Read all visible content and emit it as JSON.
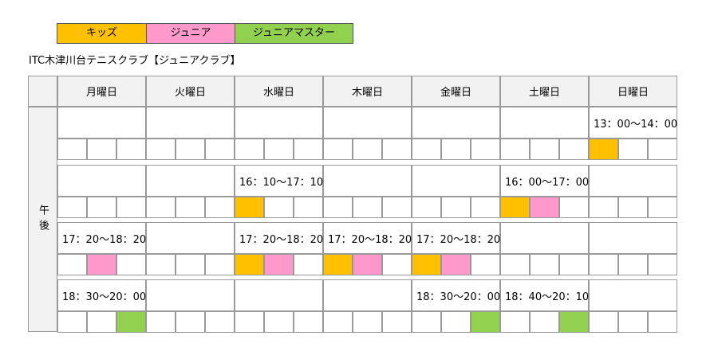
{
  "colors": {
    "kids": "#FFC000",
    "junior": "#FF99CC",
    "master": "#92D050",
    "header_bg": "#F2F2F2",
    "border": "#999999"
  },
  "legend": [
    {
      "label": "キッズ",
      "color": "#FFC000",
      "width": 111
    },
    {
      "label": "ジュニア",
      "color": "#FF99CC",
      "width": 111
    },
    {
      "label": "ジュニアマスター",
      "color": "#92D050",
      "width": 148
    }
  ],
  "title": "ITC木津川台テニスクラブ【ジュニアクラブ】",
  "days": [
    "月曜日",
    "火曜日",
    "水曜日",
    "木曜日",
    "金曜日",
    "土曜日",
    "日曜日"
  ],
  "ampm": "午後",
  "slots": [
    {
      "times": [
        "",
        "",
        "",
        "",
        "",
        "",
        "13：00～14：00"
      ],
      "colors": [
        [
          null,
          null,
          null
        ],
        [
          null,
          null,
          null
        ],
        [
          null,
          null,
          null
        ],
        [
          null,
          null,
          null
        ],
        [
          null,
          null,
          null
        ],
        [
          null,
          null,
          null
        ],
        [
          "#FFC000",
          null,
          null
        ]
      ]
    },
    {
      "times": [
        "",
        "",
        "16：10～17：10",
        "",
        "",
        "16：00～17：00",
        ""
      ],
      "colors": [
        [
          null,
          null,
          null
        ],
        [
          null,
          null,
          null
        ],
        [
          "#FFC000",
          null,
          null
        ],
        [
          null,
          null,
          null
        ],
        [
          null,
          null,
          null
        ],
        [
          "#FFC000",
          "#FF99CC",
          null
        ],
        [
          null,
          null,
          null
        ]
      ]
    },
    {
      "times": [
        "17：20～18：20",
        "",
        "17：20～18：20",
        "17：20～18：20",
        "17：20～18：20",
        "",
        ""
      ],
      "colors": [
        [
          null,
          "#FF99CC",
          null
        ],
        [
          null,
          null,
          null
        ],
        [
          "#FFC000",
          "#FF99CC",
          null
        ],
        [
          "#FFC000",
          "#FF99CC",
          null
        ],
        [
          "#FFC000",
          "#FF99CC",
          null
        ],
        [
          null,
          null,
          null
        ],
        [
          null,
          null,
          null
        ]
      ]
    },
    {
      "times": [
        "18：30～20：00",
        "",
        "",
        "",
        "18：30～20：00",
        "18：40～20：10",
        ""
      ],
      "colors": [
        [
          null,
          null,
          "#92D050"
        ],
        [
          null,
          null,
          null
        ],
        [
          null,
          null,
          null
        ],
        [
          null,
          null,
          null
        ],
        [
          null,
          null,
          "#92D050"
        ],
        [
          null,
          null,
          "#92D050"
        ],
        [
          null,
          null,
          null
        ]
      ]
    }
  ]
}
